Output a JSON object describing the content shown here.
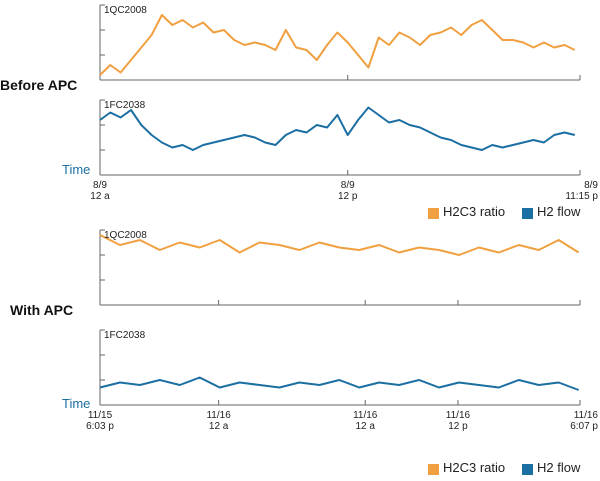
{
  "chart_data": [
    {
      "type": "line",
      "title": "Before APC",
      "x_label": "Time",
      "x": [
        0,
        0.5,
        1,
        1.5,
        2,
        2.5,
        3,
        3.5,
        4,
        4.5,
        5,
        5.5,
        6,
        6.5,
        7,
        7.5,
        8,
        8.5,
        9,
        9.5,
        10,
        10.5,
        11,
        11.5,
        12,
        12.5,
        13,
        13.5,
        14,
        14.5,
        15,
        15.5,
        16,
        16.5,
        17,
        17.5,
        18,
        18.5,
        19,
        19.5,
        20,
        20.5,
        21,
        21.5,
        22,
        22.5,
        23
      ],
      "xlim": [
        0,
        23.25
      ],
      "xticks": [
        {
          "value": 0,
          "label": "8/9\n12 a"
        },
        {
          "value": 12,
          "label": "8/9\n12 p"
        },
        {
          "value": 23.25,
          "label": "8/9\n11:15 p"
        }
      ],
      "ylim": [
        0,
        3
      ],
      "yticks": [
        0,
        1,
        2,
        3
      ],
      "series": [
        {
          "name": "H2C3 ratio",
          "panel_title": "1QC2008",
          "color": "#f0a040",
          "values": [
            0.2,
            0.6,
            0.3,
            0.8,
            1.3,
            1.8,
            2.6,
            2.2,
            2.4,
            2.1,
            2.3,
            1.9,
            2.0,
            1.6,
            1.4,
            1.5,
            1.4,
            1.2,
            2.0,
            1.3,
            1.2,
            0.8,
            1.4,
            1.9,
            1.5,
            1.0,
            0.5,
            1.7,
            1.4,
            1.9,
            1.7,
            1.4,
            1.8,
            1.9,
            2.1,
            1.8,
            2.2,
            2.4,
            2.0,
            1.6,
            1.6,
            1.5,
            1.3,
            1.5,
            1.3,
            1.4,
            1.2
          ]
        },
        {
          "name": "H2 flow",
          "panel_title": "1FC2038",
          "color": "#1b6fa3",
          "values": [
            2.2,
            2.5,
            2.3,
            2.6,
            2.0,
            1.6,
            1.3,
            1.1,
            1.2,
            1.0,
            1.2,
            1.3,
            1.4,
            1.5,
            1.6,
            1.5,
            1.3,
            1.2,
            1.6,
            1.8,
            1.7,
            2.0,
            1.9,
            2.4,
            1.6,
            2.2,
            2.7,
            2.4,
            2.1,
            2.2,
            2.0,
            1.9,
            1.7,
            1.5,
            1.4,
            1.2,
            1.1,
            1.0,
            1.2,
            1.1,
            1.2,
            1.3,
            1.4,
            1.3,
            1.6,
            1.7,
            1.6
          ]
        }
      ]
    },
    {
      "type": "line",
      "title": "With APC",
      "x_label": "Time",
      "x": [
        0,
        1,
        2,
        3,
        4,
        5,
        6,
        7,
        8,
        9,
        10,
        11,
        12,
        13,
        14,
        15,
        16,
        17,
        18,
        19,
        20,
        21,
        22,
        23,
        24
      ],
      "xlim": [
        0,
        24.07
      ],
      "xticks": [
        {
          "value": 0,
          "label": "11/15\n6:03 p"
        },
        {
          "value": 5.95,
          "label": "11/16\n12 a"
        },
        {
          "value": 13.3,
          "label": "11/16\n12 a"
        },
        {
          "value": 17.95,
          "label": "11/16\n12 p"
        },
        {
          "value": 24.07,
          "label": "11/16\n6:07 p"
        }
      ],
      "ylim": [
        0,
        3
      ],
      "yticks": [
        0,
        1,
        2,
        3
      ],
      "series": [
        {
          "name": "H2C3 ratio",
          "panel_title": "1QC2008",
          "color": "#f0a040",
          "values": [
            2.8,
            2.4,
            2.6,
            2.2,
            2.5,
            2.3,
            2.6,
            2.1,
            2.5,
            2.4,
            2.2,
            2.5,
            2.3,
            2.2,
            2.4,
            2.1,
            2.3,
            2.2,
            2.0,
            2.3,
            2.1,
            2.4,
            2.2,
            2.6,
            2.1
          ]
        },
        {
          "name": "H2 flow",
          "panel_title": "1FC2038",
          "color": "#1b6fa3",
          "values": [
            0.7,
            0.9,
            0.8,
            1.0,
            0.8,
            1.1,
            0.7,
            0.9,
            0.8,
            0.7,
            0.9,
            0.8,
            1.0,
            0.7,
            0.9,
            0.8,
            1.0,
            0.7,
            0.9,
            0.8,
            0.7,
            1.0,
            0.8,
            0.9,
            0.6
          ]
        }
      ]
    }
  ]
}
